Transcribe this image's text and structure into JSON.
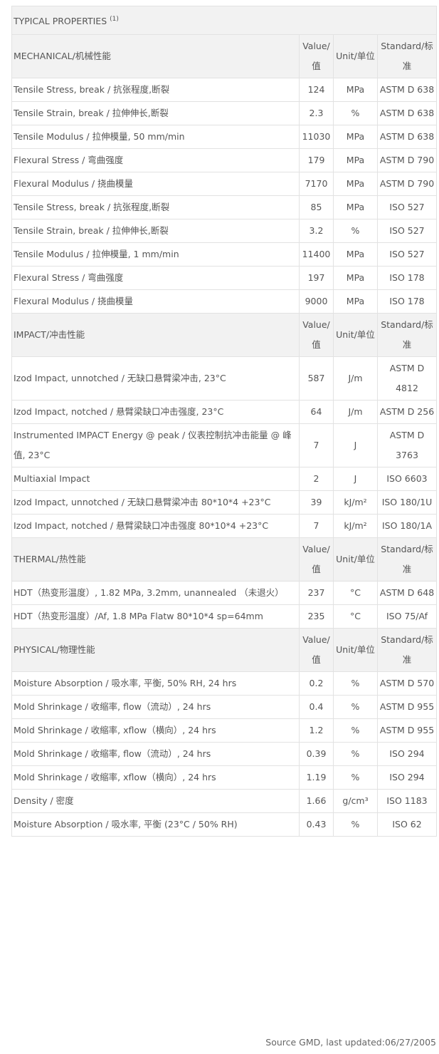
{
  "table": {
    "title": "TYPICAL PROPERTIES",
    "title_note": "(1)",
    "sections": [
      {
        "name": "MECHANICAL/机械性能",
        "col_value": "Value/值",
        "col_unit": "Unit/单位",
        "col_standard": "Standard/标准",
        "rows": [
          {
            "property": "Tensile Stress, break / 抗张程度,断裂",
            "value": "124",
            "unit": "MPa",
            "standard": "ASTM D 638"
          },
          {
            "property": "Tensile Strain, break / 拉伸伸长,断裂",
            "value": "2.3",
            "unit": "%",
            "standard": "ASTM D 638"
          },
          {
            "property": "Tensile Modulus / 拉伸模量, 50 mm/min",
            "value": "11030",
            "unit": "MPa",
            "standard": "ASTM D 638"
          },
          {
            "property": "Flexural Stress / 弯曲强度",
            "value": "179",
            "unit": "MPa",
            "standard": "ASTM D 790"
          },
          {
            "property": "Flexural Modulus / 挠曲模量",
            "value": "7170",
            "unit": "MPa",
            "standard": "ASTM D 790"
          },
          {
            "property": "Tensile Stress, break / 抗张程度,断裂",
            "value": "85",
            "unit": "MPa",
            "standard": "ISO 527"
          },
          {
            "property": "Tensile Strain, break / 拉伸伸长,断裂",
            "value": "3.2",
            "unit": "%",
            "standard": "ISO 527"
          },
          {
            "property": "Tensile Modulus / 拉伸模量, 1 mm/min",
            "value": "11400",
            "unit": "MPa",
            "standard": "ISO 527"
          },
          {
            "property": "Flexural Stress / 弯曲强度",
            "value": "197",
            "unit": "MPa",
            "standard": "ISO 178"
          },
          {
            "property": "Flexural Modulus / 挠曲模量",
            "value": "9000",
            "unit": "MPa",
            "standard": "ISO 178"
          }
        ]
      },
      {
        "name": "IMPACT/冲击性能",
        "col_value": "Value/值",
        "col_unit": "Unit/单位",
        "col_standard": "Standard/标准",
        "rows": [
          {
            "property": "Izod Impact, unnotched / 无缺口悬臂梁冲击, 23°C",
            "value": "587",
            "unit": "J/m",
            "standard": "ASTM D 4812"
          },
          {
            "property": "Izod Impact, notched / 悬臂梁缺口冲击强度, 23°C",
            "value": "64",
            "unit": "J/m",
            "standard": "ASTM D 256"
          },
          {
            "property": "Instrumented IMPACT Energy @ peak / 仪表控制抗冲击能量 @ 峰值, 23°C",
            "value": "7",
            "unit": "J",
            "standard": "ASTM D 3763"
          },
          {
            "property": "Multiaxial Impact",
            "value": "2",
            "unit": "J",
            "standard": "ISO 6603"
          },
          {
            "property": "Izod Impact, unnotched / 无缺口悬臂梁冲击 80*10*4 +23°C",
            "value": "39",
            "unit": "kJ/m²",
            "standard": "ISO 180/1U"
          },
          {
            "property": "Izod Impact, notched / 悬臂梁缺口冲击强度 80*10*4 +23°C",
            "value": "7",
            "unit": "kJ/m²",
            "standard": "ISO 180/1A"
          }
        ]
      },
      {
        "name": "THERMAL/热性能",
        "col_value": "Value/值",
        "col_unit": "Unit/单位",
        "col_standard": "Standard/标准",
        "rows": [
          {
            "property": "HDT（热变形温度）, 1.82 MPa, 3.2mm, unannealed （未退火）",
            "value": "237",
            "unit": "°C",
            "standard": "ASTM D 648"
          },
          {
            "property": "HDT（热变形温度）/Af, 1.8 MPa Flatw 80*10*4 sp=64mm",
            "value": "235",
            "unit": "°C",
            "standard": "ISO 75/Af"
          }
        ]
      },
      {
        "name": "PHYSICAL/物理性能",
        "col_value": "Value/值",
        "col_unit": "Unit/单位",
        "col_standard": "Standard/标准",
        "rows": [
          {
            "property": "Moisture Absorption / 吸水率, 平衡, 50% RH, 24 hrs",
            "value": "0.2",
            "unit": "%",
            "standard": "ASTM D 570"
          },
          {
            "property": "Mold Shrinkage / 收缩率, flow（流动）, 24 hrs",
            "value": "0.4",
            "unit": "%",
            "standard": "ASTM D 955"
          },
          {
            "property": "Mold Shrinkage / 收缩率, xflow（横向）, 24 hrs",
            "value": "1.2",
            "unit": "%",
            "standard": "ASTM D 955"
          },
          {
            "property": "Mold Shrinkage / 收缩率, flow（流动）, 24 hrs",
            "value": "0.39",
            "unit": "%",
            "standard": "ISO 294"
          },
          {
            "property": "Mold Shrinkage / 收缩率, xflow（横向）, 24 hrs",
            "value": "1.19",
            "unit": "%",
            "standard": "ISO 294"
          },
          {
            "property": "Density / 密度",
            "value": "1.66",
            "unit": "g/cm³",
            "standard": "ISO 1183"
          },
          {
            "property": "Moisture Absorption / 吸水率, 平衡 (23°C / 50% RH)",
            "value": "0.43",
            "unit": "%",
            "standard": "ISO 62"
          }
        ]
      }
    ]
  },
  "footer": "Source GMD, last updated:06/27/2005"
}
